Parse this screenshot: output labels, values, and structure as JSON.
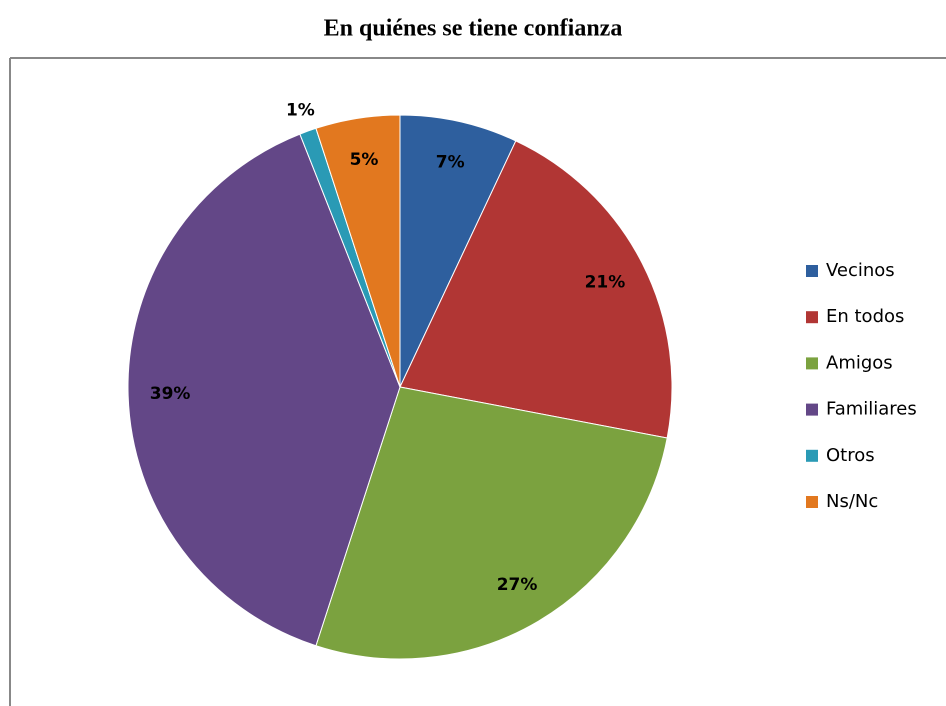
{
  "chart_data": {
    "type": "pie",
    "title": "En quiénes se tiene confianza",
    "categories": [
      "Vecinos",
      "En todos",
      "Amigos",
      "Familiares",
      "Otros",
      "Ns/Nc"
    ],
    "values": [
      7,
      21,
      27,
      39,
      1,
      5
    ],
    "value_labels": [
      "7%",
      "21%",
      "27%",
      "39%",
      "1%",
      "5%"
    ],
    "colors": [
      "#2e5f9e",
      "#b13634",
      "#7ba23f",
      "#634787",
      "#2a9ab5",
      "#e2781f"
    ],
    "legend": "right"
  }
}
